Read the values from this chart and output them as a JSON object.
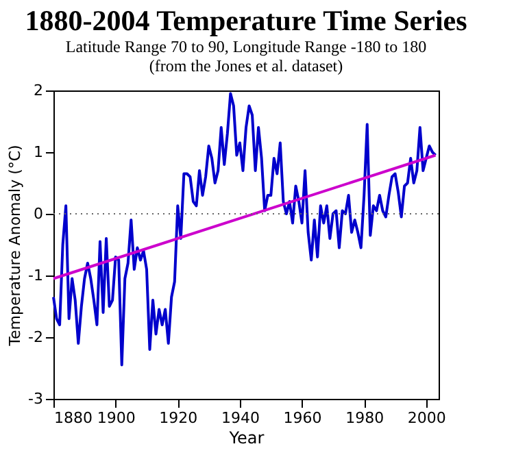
{
  "chart_data": {
    "type": "line",
    "title": "1880-2004 Temperature Time Series",
    "subtitle": "Latitude Range 70 to 90, Longitude Range -180 to 180\n(from the Jones et al. dataset)",
    "xlabel": "Year",
    "ylabel": "Temperature Anomaly (°C)",
    "x": [
      1880,
      1881,
      1882,
      1883,
      1884,
      1885,
      1886,
      1887,
      1888,
      1889,
      1890,
      1891,
      1892,
      1893,
      1894,
      1895,
      1896,
      1897,
      1898,
      1899,
      1900,
      1901,
      1902,
      1903,
      1904,
      1905,
      1906,
      1907,
      1908,
      1909,
      1910,
      1911,
      1912,
      1913,
      1914,
      1915,
      1916,
      1917,
      1918,
      1919,
      1920,
      1921,
      1922,
      1923,
      1924,
      1925,
      1926,
      1927,
      1928,
      1929,
      1930,
      1931,
      1932,
      1933,
      1934,
      1935,
      1936,
      1937,
      1938,
      1939,
      1940,
      1941,
      1942,
      1943,
      1944,
      1945,
      1946,
      1947,
      1948,
      1949,
      1950,
      1951,
      1952,
      1953,
      1954,
      1955,
      1956,
      1957,
      1958,
      1959,
      1960,
      1961,
      1962,
      1963,
      1964,
      1965,
      1966,
      1967,
      1968,
      1969,
      1970,
      1971,
      1972,
      1973,
      1974,
      1975,
      1976,
      1977,
      1978,
      1979,
      1980,
      1981,
      1982,
      1983,
      1984,
      1985,
      1986,
      1987,
      1988,
      1989,
      1990,
      1991,
      1992,
      1993,
      1994,
      1995,
      1996,
      1997,
      1998,
      1999,
      2000,
      2001,
      2002,
      2003
    ],
    "series": [
      {
        "color": "#0000cc",
        "values": [
          -1.35,
          -1.7,
          -1.8,
          -0.5,
          0.13,
          -1.7,
          -1.05,
          -1.4,
          -2.1,
          -1.5,
          -1.05,
          -0.8,
          -1.05,
          -1.4,
          -1.8,
          -0.45,
          -1.6,
          -0.4,
          -1.5,
          -1.4,
          -0.7,
          -0.75,
          -2.45,
          -1.05,
          -0.8,
          -0.1,
          -0.9,
          -0.55,
          -0.75,
          -0.6,
          -0.9,
          -2.2,
          -1.4,
          -1.95,
          -1.55,
          -1.8,
          -1.55,
          -2.1,
          -1.35,
          -1.1,
          0.13,
          -0.4,
          0.65,
          0.65,
          0.6,
          0.2,
          0.13,
          0.7,
          0.3,
          0.6,
          1.1,
          0.9,
          0.5,
          0.7,
          1.4,
          0.8,
          1.3,
          1.95,
          1.75,
          0.95,
          1.15,
          0.7,
          1.4,
          1.75,
          1.6,
          0.7,
          1.4,
          0.9,
          0.05,
          0.3,
          0.3,
          0.9,
          0.65,
          1.15,
          0.2,
          0,
          0.2,
          -0.15,
          0.45,
          0.2,
          -0.15,
          0.7,
          -0.3,
          -0.75,
          -0.1,
          -0.7,
          0.13,
          -0.15,
          0.13,
          -0.4,
          0,
          0.05,
          -0.55,
          0.05,
          0,
          0.3,
          -0.3,
          -0.1,
          -0.3,
          -0.55,
          0.3,
          1.45,
          -0.35,
          0.13,
          0.05,
          0.3,
          0.05,
          -0.05,
          0.3,
          0.6,
          0.65,
          0.35,
          -0.05,
          0.45,
          0.5,
          0.9,
          0.5,
          0.7,
          1.4,
          0.7,
          0.9,
          1.1,
          1.0,
          0.95
        ]
      },
      {
        "type": "line",
        "color": "#cc00cc",
        "x": [
          1880,
          2003
        ],
        "values": [
          -1.05,
          0.95
        ]
      }
    ],
    "xlim": [
      1880,
      2004
    ],
    "xticks": [
      1880,
      1900,
      1920,
      1940,
      1960,
      1980,
      2000
    ],
    "ylim": [
      -3,
      2
    ],
    "yticks": [
      -3,
      -2,
      -1,
      0,
      1,
      2
    ],
    "ref_lines": [
      {
        "axis": "y",
        "value": 0,
        "color": "#666666",
        "line_style": "dotted"
      }
    ]
  }
}
